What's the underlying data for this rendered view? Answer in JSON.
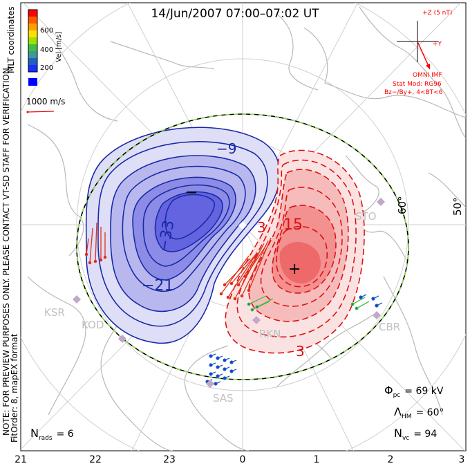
{
  "title": "14/Jun/2007 07:00–07:02 UT",
  "colorbar": {
    "tick_labels": [
      "600",
      "400",
      "200"
    ],
    "axis_label": "Vel [m/s]",
    "colors": [
      "#ff0000",
      "#ff5a00",
      "#ffa000",
      "#ffe000",
      "#a0e000",
      "#40c040",
      "#3a9a9a",
      "#2060c0",
      "#1830ff"
    ],
    "min_color": "#0000ff"
  },
  "coord_label": "MLT coordinates",
  "vector_scale": "1000 m/s",
  "imf": {
    "z_label": "+Z (5 nT)",
    "y_label": "+Y",
    "title": "OMNI IMF",
    "stat_line1": "Stat Mod: RG96",
    "stat_line2": "Bz−/By+, 4<BT<6",
    "color": "#ff0000"
  },
  "side_note_1": "NOTE: FOR PREVIEW PURPOSES ONLY. PLEASE CONTACT VT-SD STAFF FOR VERIFICATION.",
  "side_note_2": "FitOrder: 8,  mapEX format",
  "latitude_labels": [
    "60°",
    "50°"
  ],
  "radars": [
    "STO",
    "KSR",
    "KOD",
    "RKN",
    "CBR",
    "SAS"
  ],
  "contours": {
    "negative_labels": [
      "−9",
      "−33",
      "−21"
    ],
    "positive_labels": [
      "3",
      "15",
      "3"
    ],
    "neg_color": "#1a2aa8",
    "pos_color": "#e01010"
  },
  "stats": {
    "phi_pc": {
      "symbol": "Φ",
      "sub": "pc",
      "value": "= 69 kV"
    },
    "lambda_hm": {
      "symbol": "Λ",
      "sub": "HM",
      "value": "= 60°"
    },
    "n_vc": {
      "symbol": "N",
      "sub": "vc",
      "value": "= 94"
    },
    "n_rads": {
      "symbol": "N",
      "sub": "rads",
      "value": "= 6"
    }
  },
  "mlt_axis": [
    "21",
    "22",
    "23",
    "0",
    "1",
    "2",
    "3"
  ],
  "markers": {
    "min": "−",
    "max": "+"
  }
}
